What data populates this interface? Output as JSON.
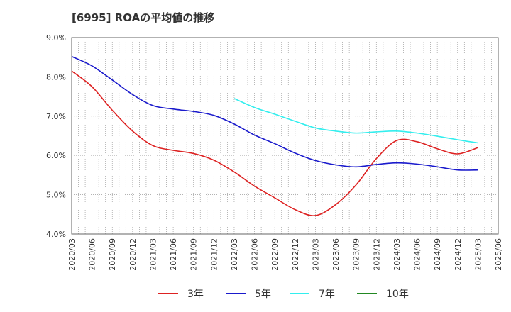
{
  "chart_data": {
    "type": "line",
    "title": "[6995]  ROAの平均値の推移",
    "xlabel": "",
    "ylabel": "",
    "x": [
      "2020/03",
      "2020/06",
      "2020/09",
      "2020/12",
      "2021/03",
      "2021/06",
      "2021/09",
      "2021/12",
      "2022/03",
      "2022/06",
      "2022/09",
      "2022/12",
      "2023/03",
      "2023/06",
      "2023/09",
      "2023/12",
      "2024/03",
      "2024/06",
      "2024/09",
      "2024/12",
      "2025/03",
      "2025/06"
    ],
    "y_ticks": [
      "4.0%",
      "5.0%",
      "6.0%",
      "7.0%",
      "8.0%",
      "9.0%"
    ],
    "ylim": [
      4.0,
      9.0
    ],
    "grid": true,
    "legend_position": "bottom",
    "series": [
      {
        "name": "3年",
        "color": "#dd2222",
        "values": [
          8.15,
          7.75,
          7.15,
          6.62,
          6.25,
          6.13,
          6.05,
          5.88,
          5.58,
          5.22,
          4.92,
          4.62,
          4.47,
          4.75,
          5.25,
          5.92,
          6.38,
          6.35,
          6.17,
          6.04,
          6.2,
          null
        ]
      },
      {
        "name": "5年",
        "color": "#1a1acc",
        "values": [
          8.52,
          8.28,
          7.92,
          7.55,
          7.27,
          7.18,
          7.12,
          7.02,
          6.8,
          6.52,
          6.3,
          6.06,
          5.87,
          5.76,
          5.71,
          5.77,
          5.81,
          5.78,
          5.71,
          5.63,
          5.63,
          null
        ]
      },
      {
        "name": "7年",
        "color": "#33eeee",
        "values": [
          null,
          null,
          null,
          null,
          null,
          null,
          null,
          null,
          7.45,
          7.22,
          7.05,
          6.87,
          6.7,
          6.62,
          6.57,
          6.6,
          6.62,
          6.57,
          6.49,
          6.4,
          6.32,
          null
        ]
      },
      {
        "name": "10年",
        "color": "#228822",
        "values": [
          null,
          null,
          null,
          null,
          null,
          null,
          null,
          null,
          null,
          null,
          null,
          null,
          null,
          null,
          null,
          null,
          null,
          null,
          null,
          null,
          null,
          null
        ]
      }
    ]
  }
}
